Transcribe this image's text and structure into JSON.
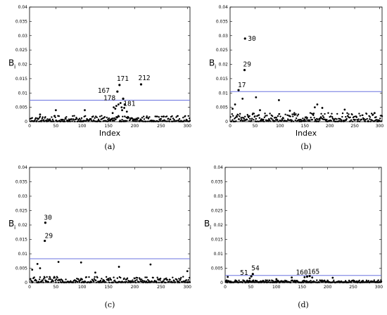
{
  "chart_data": [
    {
      "type": "scatter",
      "panel_label": "(a)",
      "xlabel": "Index",
      "ylabel": "B",
      "ylabel_sub": "i",
      "xlim": [
        0,
        305
      ],
      "ylim": [
        0,
        0.04
      ],
      "xticks": [
        "0",
        "50",
        "100",
        "150",
        "200",
        "250",
        "300"
      ],
      "yticks": [
        "0",
        "0.005",
        "0.01",
        "0.015",
        "0.02",
        "0.025",
        "0.03",
        "0.035",
        "0.04"
      ],
      "threshold": 0.0075,
      "baseline_level": 0.002,
      "highlighted": [
        {
          "index": 167,
          "value": 0.0105,
          "label": "167"
        },
        {
          "index": 171,
          "value": 0.0128,
          "label": "171"
        },
        {
          "index": 212,
          "value": 0.013,
          "label": "212"
        },
        {
          "index": 178,
          "value": 0.008,
          "label": "178"
        },
        {
          "index": 181,
          "value": 0.006,
          "label": "181"
        }
      ],
      "notable": [
        {
          "index": 160,
          "value": 0.005
        },
        {
          "index": 163,
          "value": 0.0045
        },
        {
          "index": 165,
          "value": 0.0055
        },
        {
          "index": 169,
          "value": 0.006
        },
        {
          "index": 173,
          "value": 0.0065
        },
        {
          "index": 175,
          "value": 0.005
        },
        {
          "index": 176,
          "value": 0.004
        },
        {
          "index": 180,
          "value": 0.0048
        },
        {
          "index": 158,
          "value": 0.003
        },
        {
          "index": 185,
          "value": 0.0035
        },
        {
          "index": 50,
          "value": 0.004
        },
        {
          "index": 105,
          "value": 0.004
        },
        {
          "index": 20,
          "value": 0.0025
        },
        {
          "index": 255,
          "value": 0.0018
        }
      ]
    },
    {
      "type": "scatter",
      "panel_label": "(b)",
      "xlabel": "Index",
      "ylabel": "B",
      "ylabel_sub": "i",
      "xlim": [
        0,
        305
      ],
      "ylim": [
        0,
        0.04
      ],
      "xticks": [
        "0",
        "50",
        "100",
        "150",
        "200",
        "250",
        "300"
      ],
      "yticks": [
        "0",
        "0.005",
        "0.01",
        "0.015",
        "0.02",
        "0.025",
        "0.03",
        "0.035",
        "0.04"
      ],
      "threshold": 0.0105,
      "baseline_level": 0.003,
      "highlighted": [
        {
          "index": 30,
          "value": 0.029,
          "label": "30"
        },
        {
          "index": 29,
          "value": 0.018,
          "label": "29"
        },
        {
          "index": 17,
          "value": 0.011,
          "label": "17"
        }
      ],
      "notable": [
        {
          "index": 25,
          "value": 0.008
        },
        {
          "index": 10,
          "value": 0.006
        },
        {
          "index": 52,
          "value": 0.0085
        },
        {
          "index": 98,
          "value": 0.0075
        },
        {
          "index": 60,
          "value": 0.004
        },
        {
          "index": 175,
          "value": 0.006
        },
        {
          "index": 170,
          "value": 0.005
        },
        {
          "index": 185,
          "value": 0.0048
        },
        {
          "index": 5,
          "value": 0.0045
        },
        {
          "index": 120,
          "value": 0.0038
        },
        {
          "index": 230,
          "value": 0.0042
        },
        {
          "index": 290,
          "value": 0.003
        }
      ]
    },
    {
      "type": "scatter",
      "panel_label": "(c)",
      "xlabel": "",
      "ylabel": "B",
      "ylabel_sub": "i",
      "xlim": [
        0,
        305
      ],
      "ylim": [
        0,
        0.04
      ],
      "xticks": [
        "0",
        "50",
        "100",
        "150",
        "200",
        "250",
        "300"
      ],
      "yticks": [
        "0",
        "0.005",
        "0.01",
        "0.015",
        "0.02",
        "0.025",
        "0.03",
        "0.035",
        "0.04"
      ],
      "threshold": 0.0083,
      "baseline_level": 0.002,
      "highlighted": [
        {
          "index": 30,
          "value": 0.0208,
          "label": "30"
        },
        {
          "index": 29,
          "value": 0.0145,
          "label": "29"
        }
      ],
      "notable": [
        {
          "index": 15,
          "value": 0.0065
        },
        {
          "index": 55,
          "value": 0.0072
        },
        {
          "index": 98,
          "value": 0.007
        },
        {
          "index": 230,
          "value": 0.0063
        },
        {
          "index": 170,
          "value": 0.0055
        },
        {
          "index": 5,
          "value": 0.0045
        },
        {
          "index": 300,
          "value": 0.004
        },
        {
          "index": 20,
          "value": 0.005
        },
        {
          "index": 125,
          "value": 0.0035
        }
      ]
    },
    {
      "type": "scatter",
      "panel_label": "(d)",
      "xlabel": "",
      "ylabel": "B",
      "ylabel_sub": "i",
      "xlim": [
        0,
        305
      ],
      "ylim": [
        0,
        0.04
      ],
      "xticks": [
        "0",
        "50",
        "100",
        "150",
        "200",
        "250",
        "300"
      ],
      "yticks": [
        "0",
        "0.005",
        "0.01",
        "0.015",
        "0.02",
        "0.025",
        "0.03",
        "0.035",
        "0.04"
      ],
      "threshold": 0.0025,
      "baseline_level": 0.0008,
      "highlighted": [
        {
          "index": 51,
          "value": 0.0022,
          "label": "51"
        },
        {
          "index": 54,
          "value": 0.003,
          "label": "54"
        },
        {
          "index": 160,
          "value": 0.0021,
          "label": "160"
        },
        {
          "index": 165,
          "value": 0.0023,
          "label": "165"
        }
      ],
      "notable": [
        {
          "index": 5,
          "value": 0.002
        },
        {
          "index": 130,
          "value": 0.0018
        },
        {
          "index": 155,
          "value": 0.0019
        },
        {
          "index": 170,
          "value": 0.0018
        },
        {
          "index": 210,
          "value": 0.0017
        },
        {
          "index": 48,
          "value": 0.0015
        },
        {
          "index": 100,
          "value": 0.0012
        }
      ]
    }
  ]
}
